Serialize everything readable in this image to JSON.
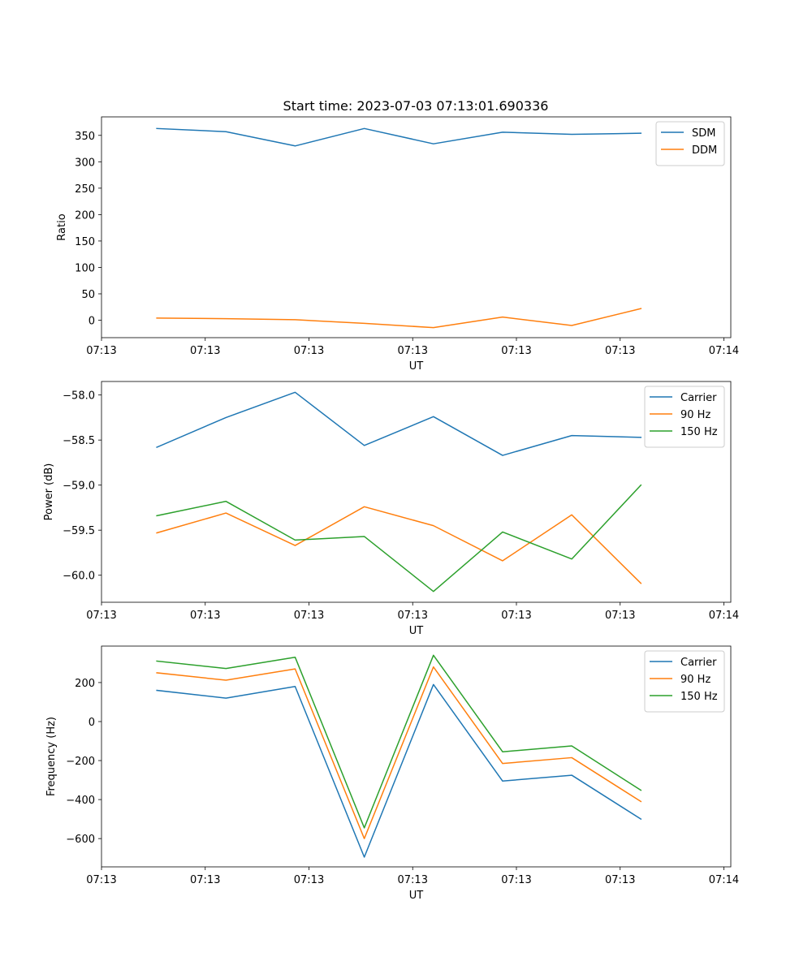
{
  "figure_title": "Start time: 2023-07-03 07:13:01.690336",
  "chart_data": [
    {
      "type": "line",
      "title": "Start time: 2023-07-03 07:13:01.690336",
      "xlabel": "UT",
      "ylabel": "Ratio",
      "x": [
        1,
        2,
        3,
        4,
        5,
        6,
        7,
        8
      ],
      "xlim": [
        0.2,
        9.3
      ],
      "x_ticks": [
        0.2,
        1.7,
        3.2,
        4.7,
        6.2,
        7.7,
        9.2
      ],
      "x_tick_labels": [
        "07:13",
        "07:13",
        "07:13",
        "07:13",
        "07:13",
        "07:13",
        "07:14"
      ],
      "ylim": [
        -33,
        385
      ],
      "y_ticks": [
        0,
        50,
        100,
        150,
        200,
        250,
        300,
        350
      ],
      "y_tick_labels": [
        "0",
        "50",
        "100",
        "150",
        "200",
        "250",
        "300",
        "350"
      ],
      "legend_position": "top-right",
      "series": [
        {
          "name": "SDM",
          "color": "#1f77b4",
          "values": [
            363,
            357,
            330,
            363,
            334,
            356,
            352,
            354
          ]
        },
        {
          "name": "DDM",
          "color": "#ff7f0e",
          "values": [
            4,
            3,
            1,
            -6,
            -14,
            6,
            -10,
            22
          ]
        }
      ]
    },
    {
      "type": "line",
      "title": "",
      "xlabel": "UT",
      "ylabel": "Power (dB)",
      "x": [
        1,
        2,
        3,
        4,
        5,
        6,
        7,
        8
      ],
      "xlim": [
        0.2,
        9.3
      ],
      "x_ticks": [
        0.2,
        1.7,
        3.2,
        4.7,
        6.2,
        7.7,
        9.2
      ],
      "x_tick_labels": [
        "07:13",
        "07:13",
        "07:13",
        "07:13",
        "07:13",
        "07:13",
        "07:14"
      ],
      "ylim": [
        -60.3,
        -57.85
      ],
      "y_ticks": [
        -60.0,
        -59.5,
        -59.0,
        -58.5,
        -58.0
      ],
      "y_tick_labels": [
        "−60.0",
        "−59.5",
        "−59.0",
        "−58.5",
        "−58.0"
      ],
      "legend_position": "top-right",
      "series": [
        {
          "name": "Carrier",
          "color": "#1f77b4",
          "values": [
            -58.58,
            -58.25,
            -57.97,
            -58.56,
            -58.24,
            -58.67,
            -58.45,
            -58.47
          ]
        },
        {
          "name": "90 Hz",
          "color": "#ff7f0e",
          "values": [
            -59.53,
            -59.31,
            -59.67,
            -59.24,
            -59.45,
            -59.84,
            -59.33,
            -60.09
          ]
        },
        {
          "name": "150 Hz",
          "color": "#2ca02c",
          "values": [
            -59.34,
            -59.18,
            -59.61,
            -59.57,
            -60.18,
            -59.52,
            -59.82,
            -59.0
          ]
        }
      ]
    },
    {
      "type": "line",
      "title": "",
      "xlabel": "UT",
      "ylabel": "Frequency (Hz)",
      "x": [
        1,
        2,
        3,
        4,
        5,
        6,
        7,
        8
      ],
      "xlim": [
        0.2,
        9.3
      ],
      "x_ticks": [
        0.2,
        1.7,
        3.2,
        4.7,
        6.2,
        7.7,
        9.2
      ],
      "x_tick_labels": [
        "07:13",
        "07:13",
        "07:13",
        "07:13",
        "07:13",
        "07:13",
        "07:14"
      ],
      "ylim": [
        -745,
        387
      ],
      "y_ticks": [
        -600,
        -400,
        -200,
        0,
        200
      ],
      "y_tick_labels": [
        "−600",
        "−400",
        "−200",
        "0",
        "200"
      ],
      "legend_position": "top-right",
      "series": [
        {
          "name": "Carrier",
          "color": "#1f77b4",
          "values": [
            160,
            120,
            180,
            -695,
            190,
            -305,
            -275,
            -500
          ]
        },
        {
          "name": "90 Hz",
          "color": "#ff7f0e",
          "values": [
            250,
            212,
            270,
            -600,
            280,
            -215,
            -185,
            -410
          ]
        },
        {
          "name": "150 Hz",
          "color": "#2ca02c",
          "values": [
            310,
            272,
            330,
            -545,
            340,
            -155,
            -125,
            -352
          ]
        }
      ]
    }
  ]
}
